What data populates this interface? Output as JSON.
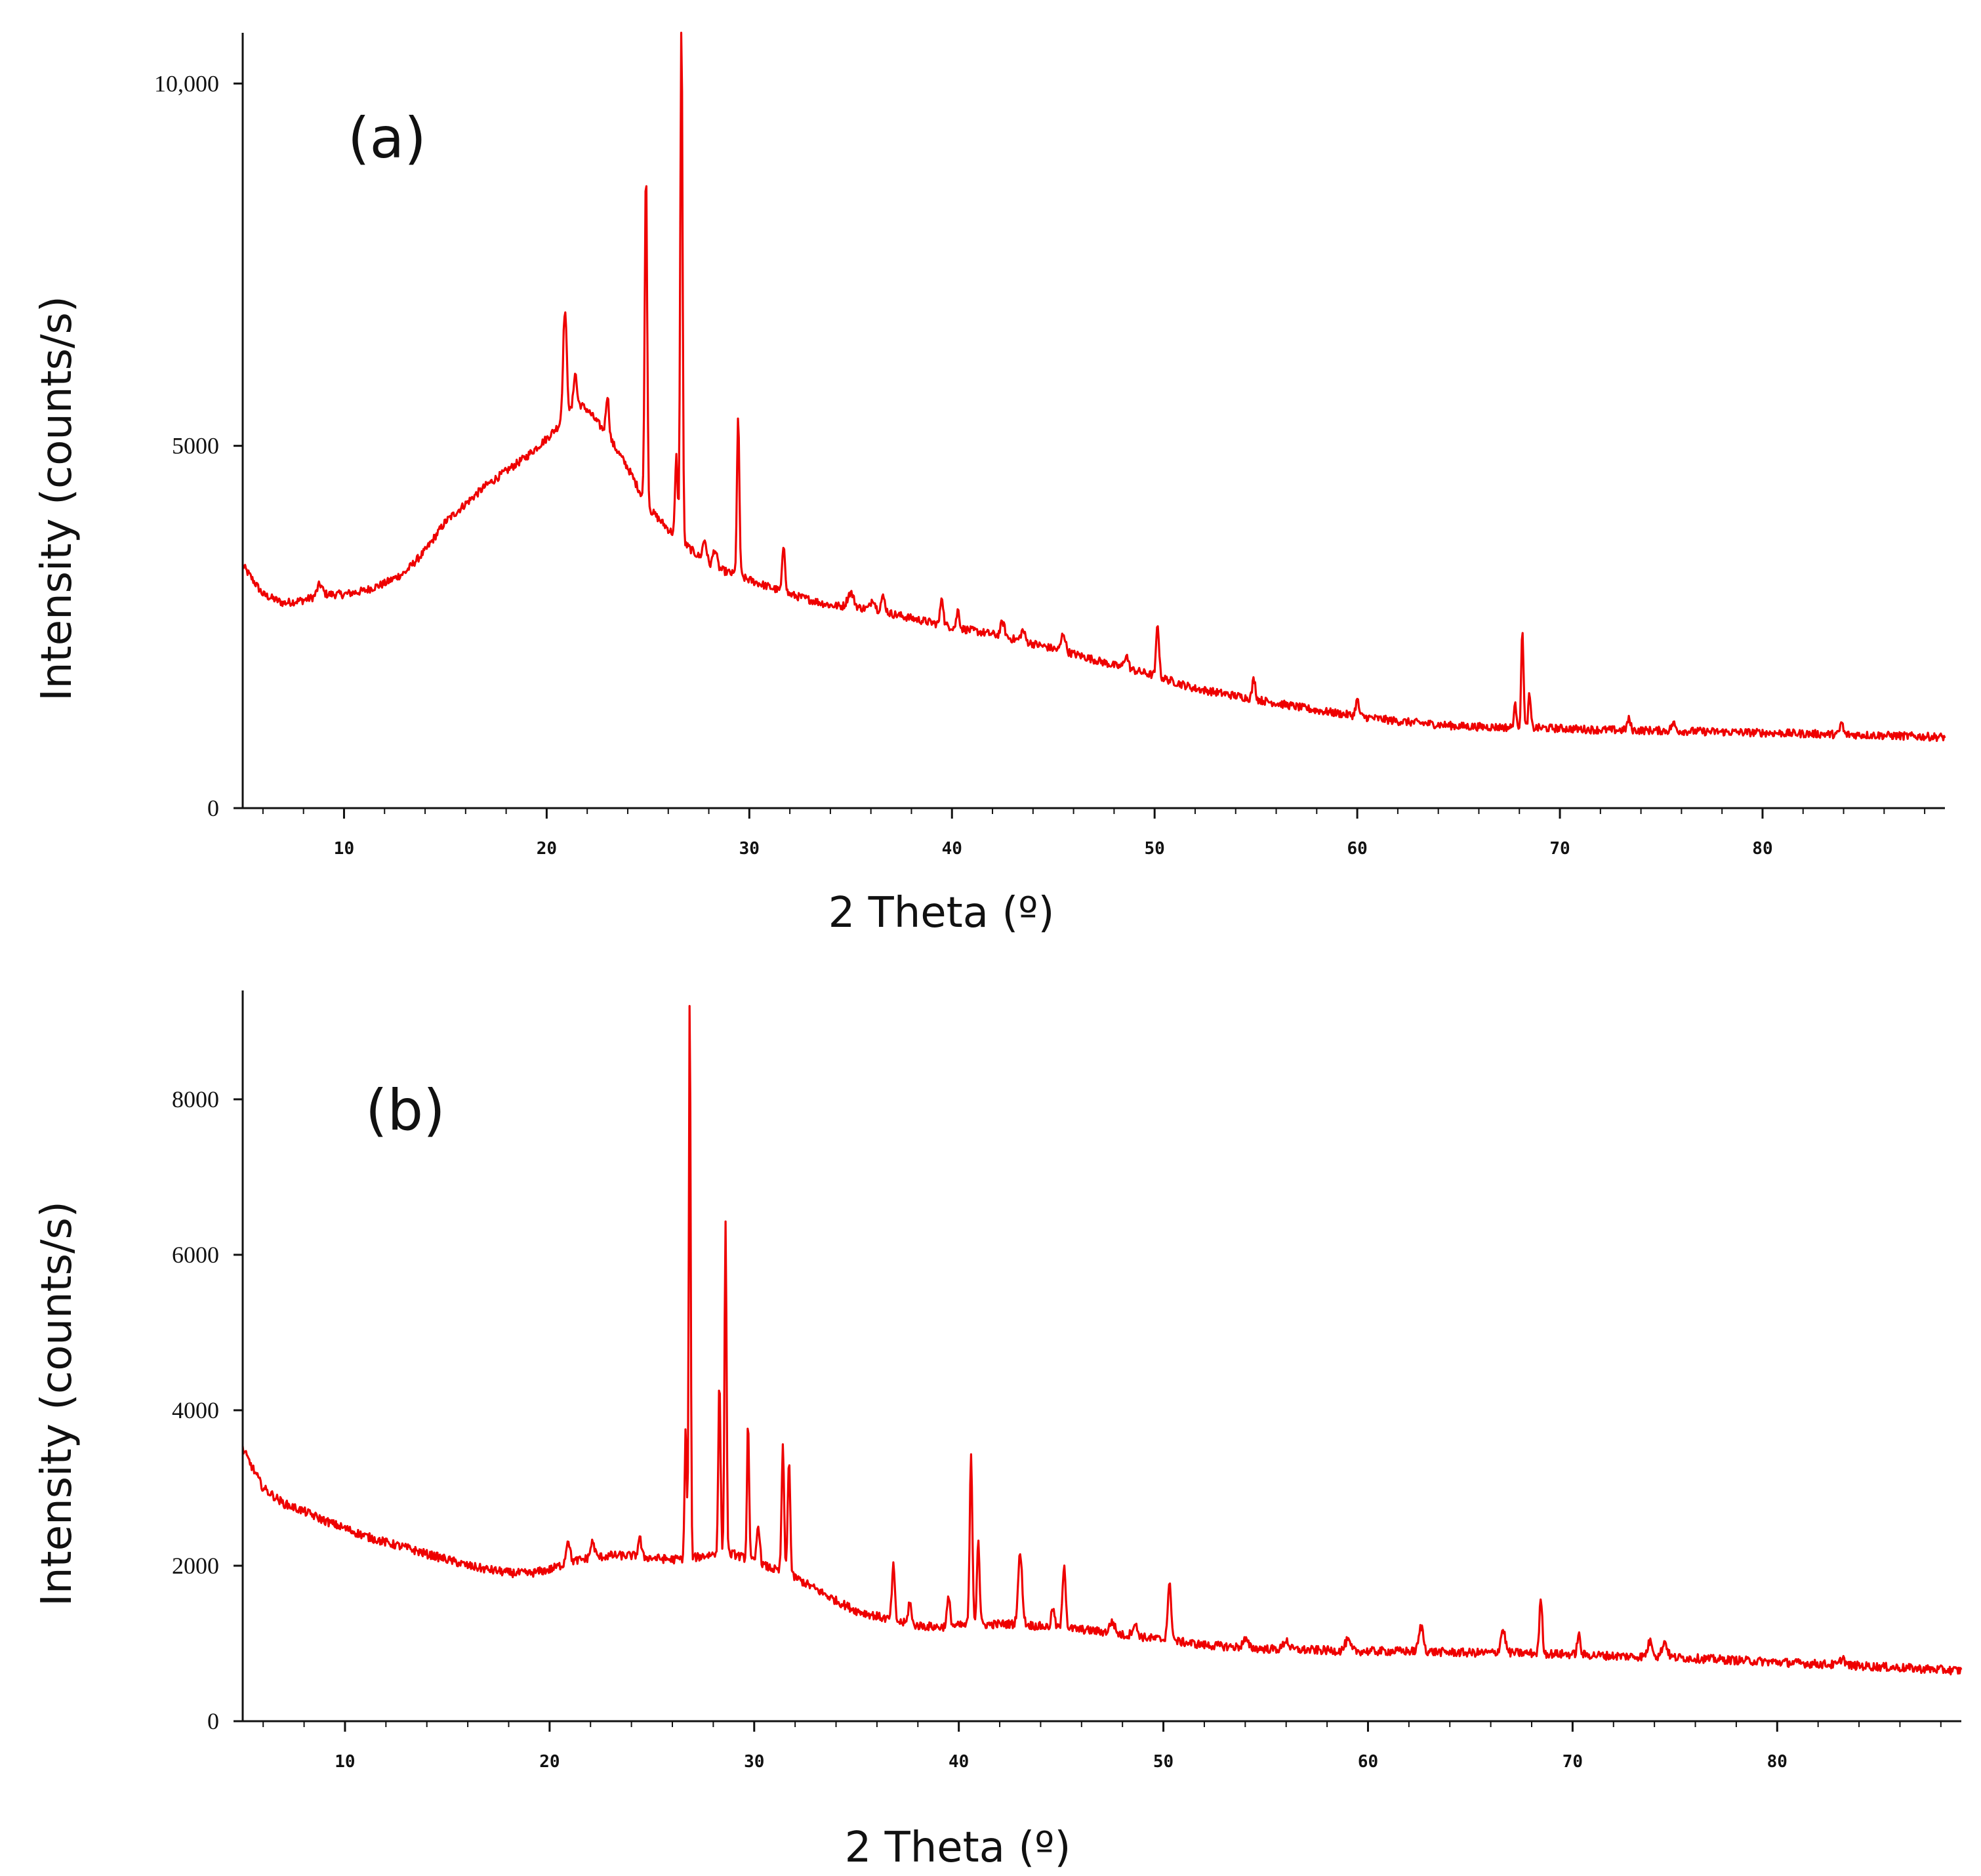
{
  "colors": {
    "trace": "#ee0000",
    "axis": "#111111"
  },
  "chart_data": [
    {
      "type": "line",
      "panel_label": "(a)",
      "xlabel": "2 Theta (º)",
      "ylabel": "Intensity (counts/s)",
      "xlim": [
        5,
        89
      ],
      "ylim": [
        0,
        10700
      ],
      "xticks": [
        10,
        20,
        30,
        40,
        50,
        60,
        70,
        80
      ],
      "xtick_labels": [
        "10",
        "20",
        "30",
        "40",
        "50",
        "60",
        "70",
        "80"
      ],
      "yticks": [
        0,
        5000,
        10000
      ],
      "ytick_labels": [
        "0",
        "5000",
        "10,000"
      ],
      "baseline": [
        [
          5,
          3350
        ],
        [
          6,
          2950
        ],
        [
          7,
          2830
        ],
        [
          8,
          2870
        ],
        [
          9,
          2950
        ],
        [
          10,
          2950
        ],
        [
          11,
          3000
        ],
        [
          12,
          3100
        ],
        [
          13,
          3250
        ],
        [
          14,
          3550
        ],
        [
          15,
          3950
        ],
        [
          16,
          4200
        ],
        [
          17,
          4450
        ],
        [
          18,
          4650
        ],
        [
          19,
          4850
        ],
        [
          20,
          5100
        ],
        [
          21,
          5400
        ],
        [
          21.5,
          5600
        ],
        [
          22,
          5500
        ],
        [
          23,
          5150
        ],
        [
          24,
          4700
        ],
        [
          25,
          4150
        ],
        [
          26,
          3850
        ],
        [
          27,
          3600
        ],
        [
          28,
          3350
        ],
        [
          29,
          3250
        ],
        [
          30,
          3150
        ],
        [
          31,
          3050
        ],
        [
          32,
          2950
        ],
        [
          34,
          2800
        ],
        [
          36,
          2750
        ],
        [
          38,
          2620
        ],
        [
          40,
          2500
        ],
        [
          42,
          2400
        ],
        [
          44,
          2270
        ],
        [
          46,
          2130
        ],
        [
          48,
          1970
        ],
        [
          50,
          1830
        ],
        [
          52,
          1650
        ],
        [
          55,
          1500
        ],
        [
          58,
          1350
        ],
        [
          60,
          1270
        ],
        [
          62,
          1200
        ],
        [
          65,
          1130
        ],
        [
          68,
          1110
        ],
        [
          70,
          1100
        ],
        [
          72,
          1080
        ],
        [
          75,
          1070
        ],
        [
          80,
          1040
        ],
        [
          85,
          1010
        ],
        [
          89,
          980
        ]
      ],
      "peaks": [
        [
          8.8,
          150,
          0.25
        ],
        [
          20.9,
          1500,
          0.18
        ],
        [
          21.4,
          450,
          0.15
        ],
        [
          23.0,
          550,
          0.15
        ],
        [
          24.9,
          4600,
          0.12
        ],
        [
          26.65,
          7200,
          0.11
        ],
        [
          26.4,
          1100,
          0.12
        ],
        [
          27.8,
          300,
          0.2
        ],
        [
          28.3,
          250,
          0.2
        ],
        [
          29.45,
          2150,
          0.12
        ],
        [
          31.7,
          650,
          0.14
        ],
        [
          35.0,
          200,
          0.3
        ],
        [
          36.1,
          150,
          0.2
        ],
        [
          36.6,
          200,
          0.2
        ],
        [
          39.5,
          400,
          0.14
        ],
        [
          40.3,
          250,
          0.14
        ],
        [
          42.5,
          200,
          0.2
        ],
        [
          43.5,
          150,
          0.2
        ],
        [
          45.5,
          250,
          0.2
        ],
        [
          48.6,
          180,
          0.2
        ],
        [
          50.15,
          720,
          0.14
        ],
        [
          54.9,
          280,
          0.15
        ],
        [
          60.0,
          220,
          0.16
        ],
        [
          67.8,
          300,
          0.14
        ],
        [
          68.15,
          1380,
          0.11
        ],
        [
          68.5,
          450,
          0.12
        ],
        [
          73.4,
          150,
          0.16
        ],
        [
          75.6,
          100,
          0.2
        ],
        [
          83.9,
          170,
          0.14
        ]
      ]
    },
    {
      "type": "line",
      "panel_label": "(b)",
      "xlabel": "2 Theta (º)",
      "ylabel": "Intensity (counts/s)",
      "xlim": [
        5,
        89
      ],
      "ylim": [
        0,
        9400
      ],
      "xticks": [
        10,
        20,
        30,
        40,
        50,
        60,
        70,
        80
      ],
      "xtick_labels": [
        "10",
        "20",
        "30",
        "40",
        "50",
        "60",
        "70",
        "80"
      ],
      "yticks": [
        0,
        2000,
        4000,
        6000,
        8000
      ],
      "ytick_labels": [
        "0",
        "2000",
        "4000",
        "6000",
        "8000"
      ],
      "baseline": [
        [
          5,
          3500
        ],
        [
          6,
          3000
        ],
        [
          7,
          2800
        ],
        [
          8,
          2700
        ],
        [
          9,
          2580
        ],
        [
          10,
          2480
        ],
        [
          11,
          2380
        ],
        [
          12,
          2300
        ],
        [
          13,
          2230
        ],
        [
          14,
          2150
        ],
        [
          15,
          2080
        ],
        [
          16,
          2000
        ],
        [
          17,
          1950
        ],
        [
          18,
          1910
        ],
        [
          19,
          1900
        ],
        [
          20,
          1950
        ],
        [
          21,
          2050
        ],
        [
          22,
          2100
        ],
        [
          23,
          2130
        ],
        [
          24,
          2130
        ],
        [
          25,
          2100
        ],
        [
          26,
          2080
        ],
        [
          27,
          2100
        ],
        [
          28,
          2150
        ],
        [
          29,
          2150
        ],
        [
          30,
          2050
        ],
        [
          31,
          1950
        ],
        [
          32,
          1850
        ],
        [
          33,
          1700
        ],
        [
          34,
          1550
        ],
        [
          35,
          1420
        ],
        [
          36,
          1350
        ],
        [
          37,
          1280
        ],
        [
          38,
          1230
        ],
        [
          39,
          1210
        ],
        [
          40,
          1230
        ],
        [
          41,
          1240
        ],
        [
          42,
          1250
        ],
        [
          43,
          1250
        ],
        [
          44,
          1220
        ],
        [
          45,
          1200
        ],
        [
          46,
          1180
        ],
        [
          47,
          1150
        ],
        [
          48,
          1110
        ],
        [
          50,
          1050
        ],
        [
          52,
          980
        ],
        [
          55,
          930
        ],
        [
          58,
          910
        ],
        [
          60,
          900
        ],
        [
          62,
          900
        ],
        [
          65,
          880
        ],
        [
          67,
          880
        ],
        [
          70,
          860
        ],
        [
          72,
          840
        ],
        [
          75,
          820
        ],
        [
          80,
          760
        ],
        [
          85,
          700
        ],
        [
          89,
          650
        ]
      ],
      "peaks": [
        [
          20.9,
          300,
          0.18
        ],
        [
          22.1,
          200,
          0.2
        ],
        [
          24.4,
          250,
          0.15
        ],
        [
          26.65,
          1700,
          0.1
        ],
        [
          26.85,
          7250,
          0.09
        ],
        [
          28.3,
          2200,
          0.11
        ],
        [
          28.6,
          4250,
          0.1
        ],
        [
          29.7,
          1800,
          0.1
        ],
        [
          30.2,
          500,
          0.15
        ],
        [
          31.4,
          1600,
          0.12
        ],
        [
          31.7,
          1500,
          0.12
        ],
        [
          36.8,
          700,
          0.14
        ],
        [
          37.6,
          300,
          0.14
        ],
        [
          39.5,
          350,
          0.16
        ],
        [
          40.6,
          2150,
          0.13
        ],
        [
          40.95,
          1100,
          0.13
        ],
        [
          43.0,
          900,
          0.2
        ],
        [
          44.6,
          250,
          0.15
        ],
        [
          45.15,
          830,
          0.15
        ],
        [
          47.5,
          150,
          0.25
        ],
        [
          48.6,
          150,
          0.25
        ],
        [
          50.3,
          700,
          0.18
        ],
        [
          54.0,
          100,
          0.25
        ],
        [
          56.0,
          120,
          0.25
        ],
        [
          59.0,
          130,
          0.25
        ],
        [
          62.6,
          320,
          0.22
        ],
        [
          66.6,
          300,
          0.22
        ],
        [
          68.45,
          710,
          0.14
        ],
        [
          70.3,
          250,
          0.15
        ],
        [
          73.8,
          200,
          0.25
        ],
        [
          74.5,
          200,
          0.25
        ],
        [
          83.2,
          100,
          0.2
        ]
      ]
    }
  ]
}
